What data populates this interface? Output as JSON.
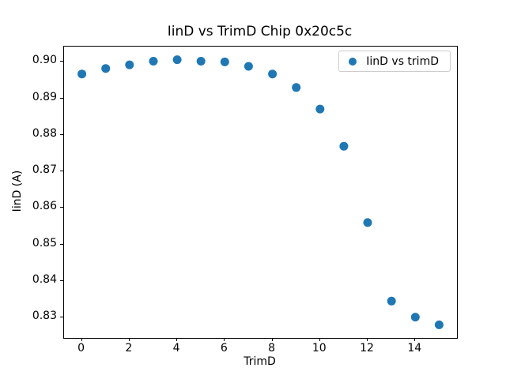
{
  "chart_data": {
    "type": "scatter",
    "title": "IinD vs TrimD Chip 0x20c5c",
    "xlabel": "TrimD",
    "ylabel": "IinD (A)",
    "legend": {
      "label": "IinD vs trimD",
      "position": "upper right",
      "frame": true
    },
    "marker_color": "#1f77b4",
    "marker_shape": "circle",
    "grid": false,
    "x": [
      0,
      1,
      2,
      3,
      4,
      5,
      6,
      7,
      8,
      9,
      10,
      11,
      12,
      13,
      14,
      15
    ],
    "y": [
      0.8967,
      0.8982,
      0.8992,
      0.9002,
      0.9006,
      0.9002,
      0.9,
      0.8988,
      0.8967,
      0.893,
      0.8871,
      0.8769,
      0.856,
      0.8345,
      0.8301,
      0.828
    ],
    "xlim": [
      -0.75,
      15.75
    ],
    "ylim": [
      0.8244,
      0.9042
    ],
    "xticks": [
      {
        "value": 0,
        "label": "0"
      },
      {
        "value": 2,
        "label": "2"
      },
      {
        "value": 4,
        "label": "4"
      },
      {
        "value": 6,
        "label": "6"
      },
      {
        "value": 8,
        "label": "8"
      },
      {
        "value": 10,
        "label": "10"
      },
      {
        "value": 12,
        "label": "12"
      },
      {
        "value": 14,
        "label": "14"
      }
    ],
    "yticks": [
      {
        "value": 0.9,
        "label": "0.90"
      },
      {
        "value": 0.89,
        "label": "0.89"
      },
      {
        "value": 0.88,
        "label": "0.88"
      },
      {
        "value": 0.87,
        "label": "0.87"
      },
      {
        "value": 0.86,
        "label": "0.86"
      },
      {
        "value": 0.85,
        "label": "0.85"
      },
      {
        "value": 0.84,
        "label": "0.84"
      },
      {
        "value": 0.83,
        "label": "0.83"
      }
    ]
  }
}
